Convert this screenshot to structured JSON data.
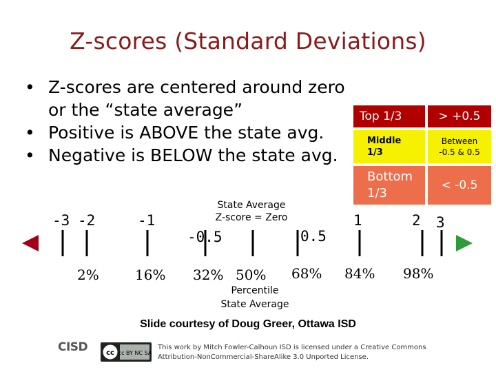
{
  "slide": {
    "title": "Z-scores (Standard Deviations)",
    "bullets": [
      {
        "line1": "Z-scores are centered around zero",
        "line2": "or the “state average”"
      },
      {
        "line1": "Positive is ABOVE the state avg."
      },
      {
        "line1": "Negative is BELOW the state avg."
      }
    ],
    "bullet_glyph": "•"
  },
  "legend": {
    "rows": [
      {
        "label": "Top 1/3",
        "value": "> +0.5",
        "tone": "top"
      },
      {
        "label": "Middle 1/3",
        "value": "Between -0.5 & 0.5",
        "tone": "mid"
      },
      {
        "label": "Bottom 1/3",
        "value": "< -0.5",
        "tone": "bot"
      }
    ],
    "colors": {
      "top": "#b00000",
      "mid": "#f5f100",
      "bot": "#ec6e4b"
    }
  },
  "scale": {
    "z_labels": [
      "-3",
      "-2",
      "-1",
      "-0.5",
      "0.5",
      "1",
      "2",
      "3"
    ],
    "percentiles": [
      "2%",
      "16%",
      "32%",
      "50%",
      "68%",
      "84%",
      "98%"
    ],
    "state_average_label_line1": "State Average",
    "state_average_label_line2": "Z-score = Zero",
    "percentile_label_line1": "Percentile",
    "percentile_label_line2": "State Average",
    "arrow_left_color": "#a0001a",
    "arrow_right_color": "#2e9a3a"
  },
  "footer": {
    "courtesy": "Slide courtesy of Doug Greer, Ottawa ISD",
    "logo_text": "CISD",
    "cc_text": "cc BY NC SA",
    "license_line1": "This work by Mitch Fowler-Calhoun ISD is licensed under a Creative Commons",
    "license_line2": "Attribution-NonCommercial-ShareAlike 3.0 Unported License."
  }
}
